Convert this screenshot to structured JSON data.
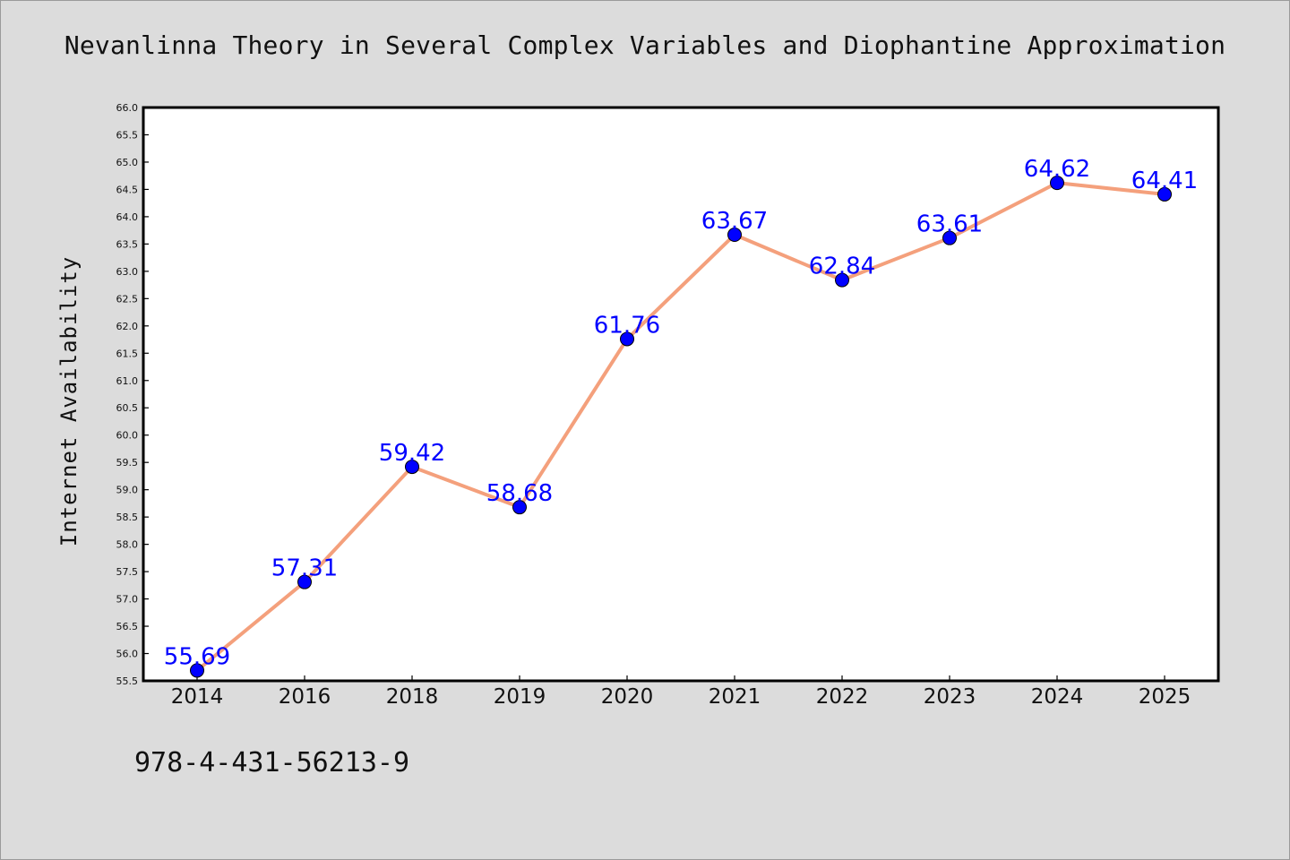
{
  "chart_data": {
    "type": "line",
    "title": "Nevanlinna Theory in Several Complex Variables and Diophantine Approximation",
    "xlabel": "",
    "ylabel": "Internet Availability",
    "categories": [
      "2014",
      "2016",
      "2018",
      "2019",
      "2020",
      "2021",
      "2022",
      "2023",
      "2024",
      "2025"
    ],
    "series": [
      {
        "values": [
          55.69,
          57.31,
          59.42,
          58.68,
          61.76,
          63.67,
          62.84,
          63.61,
          64.62,
          64.41
        ]
      }
    ],
    "value_labels": [
      "55.69",
      "57.31",
      "59.42",
      "58.68",
      "61.76",
      "63.67",
      "62.84",
      "63.61",
      "64.62",
      "64.41"
    ],
    "ylim": [
      55.5,
      66.0
    ],
    "y_ticks": [
      "55.5",
      "56.0",
      "56.5",
      "57.0",
      "57.5",
      "58.0",
      "58.5",
      "59.0",
      "59.5",
      "60.0",
      "60.5",
      "61.0",
      "61.5",
      "62.0",
      "62.5",
      "63.0",
      "63.5",
      "64.0",
      "64.5",
      "65.0",
      "65.5",
      "66.0"
    ],
    "grid": false,
    "colors": {
      "line": "#f4a07c",
      "marker": "#0000ff",
      "label": "#0000ff",
      "plot_bg": "#ffffff",
      "page_bg": "#dcdcdc"
    }
  },
  "footer": {
    "isbn": "978-4-431-56213-9"
  }
}
